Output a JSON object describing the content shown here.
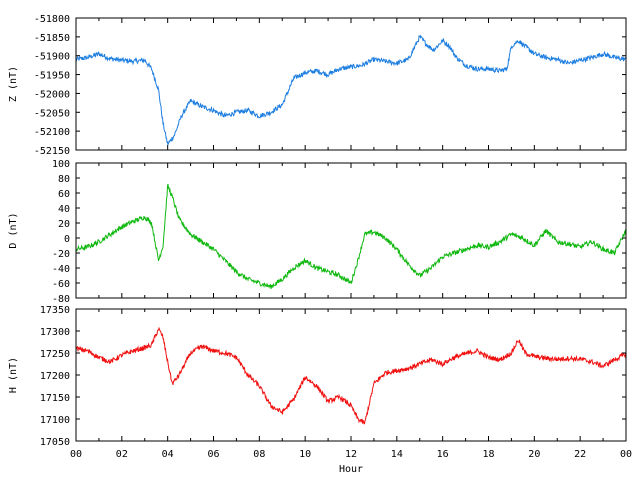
{
  "chart_data": [
    {
      "type": "line",
      "panel": "Z",
      "ylabel": "Z (nT)",
      "color": "#1f7fe0",
      "ylim": [
        -52150,
        -51800
      ],
      "yticks": [
        -51800,
        -51850,
        -51900,
        -51950,
        -52000,
        -52050,
        -52100,
        -52150
      ],
      "xlabel": "",
      "xlim": [
        0,
        24
      ],
      "series": [
        {
          "x": [
            0,
            0.5,
            1,
            1.5,
            2,
            2.5,
            3,
            3.3,
            3.6,
            3.8,
            4.0,
            4.3,
            4.6,
            5.0,
            5.5,
            6.0,
            6.5,
            7.0,
            7.5,
            8.0,
            8.5,
            9.0,
            9.5,
            10.0,
            10.5,
            11.0,
            11.5,
            12.0,
            12.5,
            13.0,
            13.5,
            14.0,
            14.5,
            15.0,
            15.3,
            15.6,
            16.0,
            16.3,
            16.6,
            17.0,
            17.5,
            18.0,
            18.5,
            18.8,
            19.0,
            19.3,
            19.6,
            20.0,
            20.5,
            21.0,
            21.5,
            22.0,
            22.5,
            23.0,
            23.5,
            24.0
          ],
          "values": [
            -51910,
            -51905,
            -51895,
            -51908,
            -51912,
            -51915,
            -51912,
            -51935,
            -51990,
            -52080,
            -52135,
            -52110,
            -52060,
            -52020,
            -52035,
            -52045,
            -52060,
            -52050,
            -52045,
            -52060,
            -52050,
            -52030,
            -51960,
            -51945,
            -51940,
            -51950,
            -51935,
            -51930,
            -51925,
            -51910,
            -51915,
            -51920,
            -51910,
            -51850,
            -51870,
            -51885,
            -51860,
            -51875,
            -51905,
            -51925,
            -51935,
            -51935,
            -51940,
            -51935,
            -51875,
            -51860,
            -51875,
            -51895,
            -51905,
            -51910,
            -51920,
            -51912,
            -51905,
            -51895,
            -51905,
            -51910
          ]
        }
      ]
    },
    {
      "type": "line",
      "panel": "D",
      "ylabel": "D (nT)",
      "color": "#10b810",
      "ylim": [
        -80,
        100
      ],
      "yticks": [
        100,
        80,
        60,
        40,
        20,
        0,
        -20,
        -40,
        -60,
        -80
      ],
      "xlabel": "",
      "xlim": [
        0,
        24
      ],
      "series": [
        {
          "x": [
            0,
            0.5,
            1,
            1.5,
            2,
            2.5,
            3,
            3.3,
            3.6,
            3.8,
            4.0,
            4.2,
            4.5,
            5.0,
            5.5,
            6.0,
            6.5,
            7.0,
            7.5,
            8.0,
            8.5,
            9.0,
            9.5,
            10.0,
            10.5,
            11.0,
            11.5,
            12.0,
            12.3,
            12.6,
            13.0,
            13.5,
            14.0,
            14.5,
            15.0,
            15.5,
            16.0,
            16.5,
            17.0,
            17.5,
            18.0,
            18.5,
            19.0,
            19.5,
            20.0,
            20.5,
            21.0,
            21.5,
            22.0,
            22.5,
            23.0,
            23.5,
            24.0
          ],
          "values": [
            -15,
            -12,
            -5,
            5,
            15,
            22,
            28,
            20,
            -30,
            -10,
            70,
            55,
            25,
            5,
            -5,
            -15,
            -30,
            -45,
            -55,
            -60,
            -65,
            -55,
            -40,
            -30,
            -40,
            -45,
            -50,
            -60,
            -30,
            5,
            8,
            0,
            -15,
            -35,
            -50,
            -40,
            -25,
            -20,
            -15,
            -10,
            -12,
            -5,
            5,
            0,
            -10,
            10,
            -5,
            -8,
            -12,
            -5,
            -15,
            -20,
            10
          ]
        }
      ]
    },
    {
      "type": "line",
      "panel": "H",
      "ylabel": "H (nT)",
      "color": "#f01010",
      "ylim": [
        17050,
        17350
      ],
      "yticks": [
        17350,
        17300,
        17250,
        17200,
        17150,
        17100,
        17050
      ],
      "xlabel": "Hour",
      "xlim": [
        0,
        24
      ],
      "xticks": [
        "00",
        "02",
        "04",
        "06",
        "08",
        "10",
        "12",
        "14",
        "16",
        "18",
        "20",
        "22",
        "00"
      ],
      "series": [
        {
          "x": [
            0,
            0.5,
            1,
            1.5,
            2,
            2.5,
            3,
            3.3,
            3.6,
            3.8,
            4.0,
            4.2,
            4.5,
            5.0,
            5.5,
            6.0,
            6.5,
            7.0,
            7.5,
            8.0,
            8.5,
            9.0,
            9.5,
            10.0,
            10.5,
            11.0,
            11.5,
            12.0,
            12.3,
            12.6,
            13.0,
            13.5,
            14.0,
            14.5,
            15.0,
            15.5,
            16.0,
            16.5,
            17.0,
            17.5,
            18.0,
            18.5,
            19.0,
            19.3,
            19.6,
            20.0,
            20.5,
            21.0,
            21.5,
            22.0,
            22.5,
            23.0,
            23.5,
            24.0
          ],
          "values": [
            17260,
            17255,
            17240,
            17230,
            17245,
            17255,
            17262,
            17268,
            17305,
            17285,
            17230,
            17180,
            17200,
            17250,
            17265,
            17255,
            17250,
            17240,
            17200,
            17175,
            17130,
            17115,
            17145,
            17195,
            17175,
            17140,
            17150,
            17130,
            17100,
            17090,
            17180,
            17205,
            17210,
            17215,
            17225,
            17235,
            17225,
            17240,
            17248,
            17255,
            17240,
            17235,
            17250,
            17280,
            17250,
            17242,
            17238,
            17236,
            17238,
            17236,
            17230,
            17220,
            17235,
            17248
          ]
        }
      ]
    }
  ]
}
